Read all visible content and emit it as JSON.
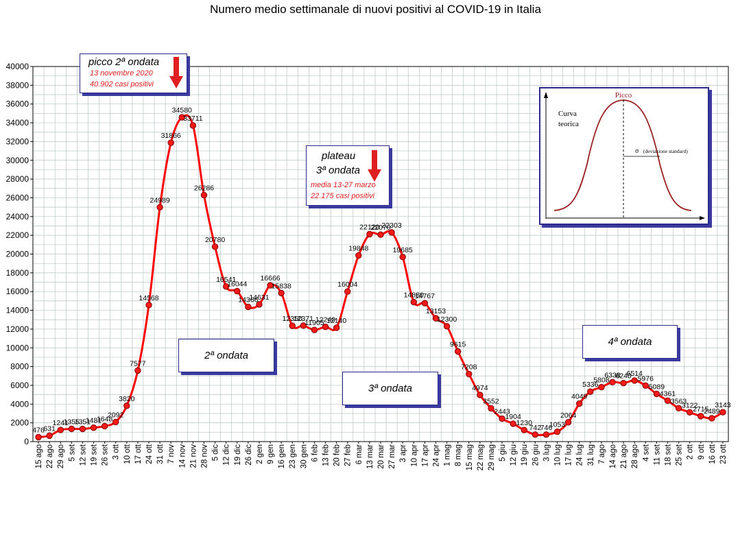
{
  "chart_data": {
    "type": "line",
    "title": "Numero medio settimanale di nuovi positivi al COVID-19 in Italia",
    "xlabel": "",
    "ylabel": "",
    "ylim": [
      0,
      40000
    ],
    "yticks": [
      0,
      2000,
      4000,
      6000,
      8000,
      10000,
      12000,
      14000,
      16000,
      18000,
      20000,
      22000,
      24000,
      26000,
      28000,
      30000,
      32000,
      34000,
      36000,
      38000,
      40000
    ],
    "grid": true,
    "color": "#ff0000",
    "categories": [
      "15 ago",
      "22 ago",
      "29 ago",
      "5 set",
      "12 set",
      "19 set",
      "26 set",
      "3 ott",
      "10 ott",
      "17 ott",
      "24 ott",
      "31 ott",
      "7 nov",
      "14 nov",
      "21 nov",
      "28 nov",
      "5 dic",
      "12 dic",
      "19 dic",
      "26 dic",
      "2 gen",
      "9 gen",
      "16 gen",
      "23 gen",
      "30 gen",
      "6 feb",
      "13 feb",
      "20 feb",
      "27 feb",
      "6 mar",
      "13 mar",
      "20 mar",
      "27 mar",
      "3 apr",
      "10 apr",
      "17 apr",
      "24 apr",
      "1 mag",
      "8 mag",
      "15 mag",
      "22 mag",
      "29 mag",
      "5 giu",
      "12 giu",
      "19 giu",
      "26 giu",
      "3 lug",
      "10 lug",
      "17 lug",
      "24 lug",
      "31 lug",
      "7 ago",
      "14 ago",
      "21 ago",
      "28 ago",
      "4 set",
      "11 set",
      "18 set",
      "25 set",
      "2 ott",
      "9 ott",
      "16 ott",
      "23 ott"
    ],
    "values": [
      476,
      631,
      1241,
      1355,
      1351,
      1481,
      1648,
      2092,
      3820,
      7577,
      14568,
      24989,
      31866,
      34580,
      33711,
      26286,
      20780,
      16541,
      16044,
      14366,
      14631,
      16666,
      15838,
      12350,
      12371,
      11905,
      12240,
      12140,
      16004,
      19848,
      22120,
      22070,
      22303,
      19685,
      14880,
      14767,
      13153,
      12300,
      9615,
      7208,
      4974,
      3552,
      2443,
      1904,
      1230,
      742,
      746,
      1053,
      2064,
      4049,
      5336,
      5808,
      6338,
      6240,
      6514,
      5976,
      5089,
      4361,
      3563,
      3122,
      2715,
      2489,
      3143
    ],
    "labels": [
      "476",
      "631",
      "1241",
      "1355",
      "1351",
      "1481",
      "1648",
      "2092",
      "3820",
      "7577",
      "14568",
      "24989",
      "31866",
      "34580",
      "33711",
      "26286",
      "20780",
      "16541",
      "16044",
      "14366",
      "14631",
      "16666",
      "15838",
      "12350",
      "12371",
      "11905",
      "12240",
      "12140",
      "16004",
      "19848",
      "22120",
      "22070",
      "22303",
      "19685",
      "14880",
      "14767",
      "13153",
      "12300",
      "9615",
      "7208",
      "4974",
      "3552",
      "2443",
      "1904",
      "1230",
      "742",
      "746",
      "1053",
      "2064",
      "4049",
      "5336",
      "5808",
      "6338",
      "6240",
      "6514",
      "5976",
      "5089",
      "4361",
      "3563",
      "3122",
      "2715",
      "2489",
      "3143"
    ]
  },
  "annotations": {
    "peak2_title": "picco 2ª ondata",
    "peak2_date": "13 novembre 2020",
    "peak2_cases": "40.902 casi positivi",
    "plateau_line1": "plateau",
    "plateau_line2": "3ª ondata",
    "plateau_mean": "media 13-27 marzo",
    "plateau_cases": "22.175 casi positivi",
    "wave2": "2ª ondata",
    "wave3": "3ª ondata",
    "wave4": "4ª ondata"
  },
  "inset": {
    "peak_label": "Picco",
    "curve_label_1": "Curva",
    "curve_label_2": "teorica",
    "sigma_symbol": "σ",
    "sigma_label": "(deviazione standard)"
  }
}
